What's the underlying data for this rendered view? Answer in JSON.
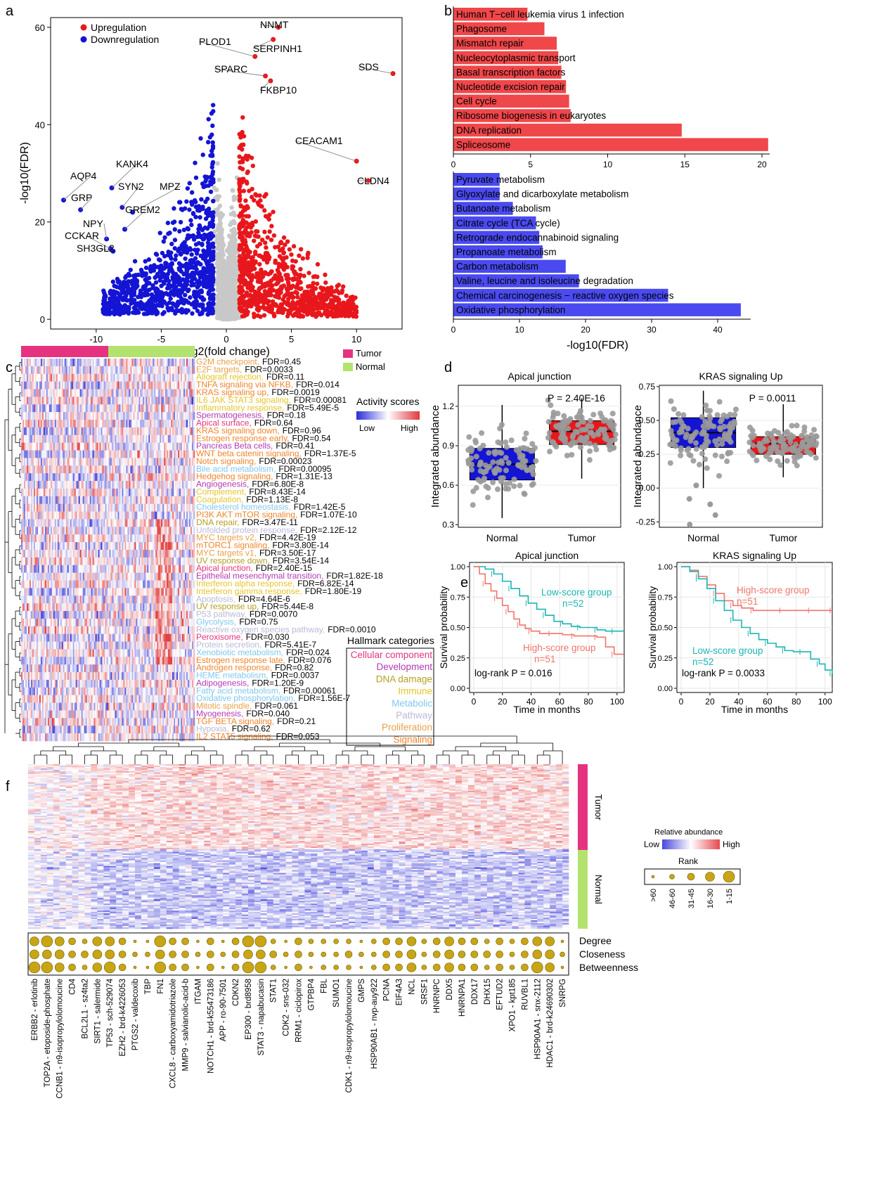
{
  "panel_letters": [
    "a",
    "b",
    "c",
    "d",
    "e",
    "f"
  ],
  "colors": {
    "up": "#e8171c",
    "down": "#1414d4",
    "ns": "#c8c8c8",
    "bar_up": "#f0474a",
    "bar_down": "#4a4af0",
    "tumor": "#e5337f",
    "normal": "#b4e26e",
    "teal": "#1bb5b3",
    "salmon": "#f0756a",
    "gold": "#c8a514"
  },
  "chart_data": [
    {
      "panel": "a",
      "type": "scatter",
      "xlabel": "log2(fold change)",
      "ylabel": "-log10(FDR)",
      "xlim": [
        -13.5,
        13.5
      ],
      "ylim": [
        -2,
        62
      ],
      "xticks": [
        -10,
        -5,
        0,
        5,
        10
      ],
      "yticks": [
        0,
        20,
        40,
        60
      ],
      "legend": [
        "Upregulation",
        "Downregulation"
      ],
      "labels": [
        {
          "gene": "NNMT",
          "x": 4.0,
          "y": 60.0
        },
        {
          "gene": "PLOD1",
          "x": 2.2,
          "y": 54.0
        },
        {
          "gene": "SERPINH1",
          "x": 3.6,
          "y": 57.5
        },
        {
          "gene": "SDS",
          "x": 12.8,
          "y": 50.5
        },
        {
          "gene": "SPARC",
          "x": 3.0,
          "y": 50.0
        },
        {
          "gene": "FKBP10",
          "x": 3.4,
          "y": 49.0
        },
        {
          "gene": "CEACAM1",
          "x": 10.0,
          "y": 32.5
        },
        {
          "gene": "CLDN4",
          "x": 10.9,
          "y": 28.5
        },
        {
          "gene": "AQP4",
          "x": -12.5,
          "y": 24.5
        },
        {
          "gene": "KANK4",
          "x": -8.8,
          "y": 27.0
        },
        {
          "gene": "GRP",
          "x": -11.2,
          "y": 22.5
        },
        {
          "gene": "SYN2",
          "x": -8.0,
          "y": 23.0
        },
        {
          "gene": "MPZ",
          "x": -7.2,
          "y": 22.0
        },
        {
          "gene": "GREM2",
          "x": -7.8,
          "y": 18.5
        },
        {
          "gene": "NPY",
          "x": -9.2,
          "y": 16.5
        },
        {
          "gene": "CCKAR",
          "x": -8.9,
          "y": 14.5
        },
        {
          "gene": "SH3GL2",
          "x": -8.7,
          "y": 14.0
        }
      ]
    },
    {
      "panel": "b",
      "type": "bar",
      "xlabel": "-log10(FDR)",
      "up": {
        "xlim": [
          0,
          20.5
        ],
        "xticks": [
          0,
          5,
          10,
          15,
          20
        ],
        "categories": [
          "Human T−cell leukemia virus 1 infection",
          "Phagosome",
          "Mismatch repair",
          "Nucleocytoplasmic transport",
          "Basal transcription factors",
          "Nucleotide excision repair",
          "Cell cycle",
          "Ribosome biogenesis in eukaryotes",
          "DNA replication",
          "Spliceosome"
        ],
        "values": [
          4.8,
          5.9,
          6.7,
          6.8,
          7.0,
          7.3,
          7.5,
          7.6,
          14.8,
          20.4
        ]
      },
      "down": {
        "xlim": [
          0,
          45
        ],
        "xticks": [
          0,
          10,
          20,
          30,
          40
        ],
        "categories": [
          "Pyruvate metabolism",
          "Glyoxylate and dicarboxylate metabolism",
          "Butanoate metabolism",
          "Citrate cycle (TCA cycle)",
          "Retrograde endocannabinoid signaling",
          "Propanoate metabolism",
          "Carbon metabolism",
          "Valine, leucine and isoleucine degradation",
          "Chemical carcinogenesis − reactive oxygen species",
          "Oxidative phosphorylation"
        ],
        "values": [
          7.0,
          7.0,
          9.0,
          12.5,
          13.0,
          13.5,
          17.0,
          19.0,
          32.5,
          43.5
        ]
      }
    },
    {
      "panel": "c",
      "type": "heatmap",
      "legend_groups": [
        "Tumor",
        "Normal"
      ],
      "scale_title": "Activity scores",
      "scale_low": "Low",
      "scale_high": "High",
      "category_title": "Hallmark categories",
      "categories": [
        {
          "name": "Cellular component",
          "color": "#e5337f"
        },
        {
          "name": "Development",
          "color": "#b33ab3"
        },
        {
          "name": "DNA damage",
          "color": "#b5a020"
        },
        {
          "name": "Immune",
          "color": "#e6c428"
        },
        {
          "name": "Metabolic",
          "color": "#7fc8ef"
        },
        {
          "name": "Pathway",
          "color": "#b9b9d9"
        },
        {
          "name": "Proliferation",
          "color": "#e9a049"
        },
        {
          "name": "Signaling",
          "color": "#f0842a"
        }
      ],
      "rows": [
        {
          "name": "G2M checkpoint,",
          "fdr": "FDR=0.45",
          "cat": 6
        },
        {
          "name": "E2F targets,",
          "fdr": "FDR=0.0033",
          "cat": 6
        },
        {
          "name": "Allograft rejection,",
          "fdr": "FDR=0.11",
          "cat": 3
        },
        {
          "name": "TNFA signaling via NFKB,",
          "fdr": "FDR=0.014",
          "cat": 7
        },
        {
          "name": "KRAS signaling up,",
          "fdr": "FDR=0.0019",
          "cat": 7
        },
        {
          "name": "IL6 JAK STAT3 signaling,",
          "fdr": "FDR=0.00081",
          "cat": 3
        },
        {
          "name": "Inflammatory response,",
          "fdr": "FDR=5.49E-5",
          "cat": 3
        },
        {
          "name": "Spermatogenesis,",
          "fdr": "FDR=0.18",
          "cat": 1
        },
        {
          "name": "Apical surface,",
          "fdr": "FDR=0.64",
          "cat": 0
        },
        {
          "name": "KRAS signaling down,",
          "fdr": "FDR=0.96",
          "cat": 7
        },
        {
          "name": "Estrogen response  early,",
          "fdr": "FDR=0.54",
          "cat": 7
        },
        {
          "name": "Pancreas Beta cells,",
          "fdr": "FDR=0.41",
          "cat": 1
        },
        {
          "name": "WNT beta catenin signaling,",
          "fdr": "FDR=1.37E-5",
          "cat": 7
        },
        {
          "name": "Notch signaling,",
          "fdr": "FDR=0.00023",
          "cat": 7
        },
        {
          "name": "Bile acid metabolism,",
          "fdr": "FDR=0.00095",
          "cat": 4
        },
        {
          "name": "Hedgehog signaling,",
          "fdr": "FDR=1.31E-13",
          "cat": 7
        },
        {
          "name": "Angiogenesis,",
          "fdr": "FDR=6.80E-8",
          "cat": 1
        },
        {
          "name": "Complement,",
          "fdr": "FDR=8.43E-14",
          "cat": 3
        },
        {
          "name": "Coagulation,",
          "fdr": "FDR=1.13E-8",
          "cat": 3
        },
        {
          "name": "Cholesterol homeostasis,",
          "fdr": "FDR=1.42E-5",
          "cat": 4
        },
        {
          "name": "PI3K AKT mTOR signaling,",
          "fdr": "FDR=1.07E-10",
          "cat": 7
        },
        {
          "name": "DNA repair,",
          "fdr": "FDR=3.47E-11",
          "cat": 2
        },
        {
          "name": "Unfolded protein response,",
          "fdr": "FDR=2.12E-12",
          "cat": 5
        },
        {
          "name": "MYC targets v2,",
          "fdr": "FDR=4.42E-19",
          "cat": 6
        },
        {
          "name": "mTORC1 signaling,",
          "fdr": "FDR=3.80E-14",
          "cat": 7
        },
        {
          "name": "MYC targets v1,",
          "fdr": "FDR=3.50E-17",
          "cat": 6
        },
        {
          "name": "UV response down,",
          "fdr": "FDR=3.54E-14",
          "cat": 2
        },
        {
          "name": "Apical junction,",
          "fdr": "FDR=2.40E-15",
          "cat": 0
        },
        {
          "name": "Epithelial mesenchymal transition,",
          "fdr": "FDR=1.82E-18",
          "cat": 1
        },
        {
          "name": "Interferon alpha response,",
          "fdr": "FDR=6.82E-14",
          "cat": 3
        },
        {
          "name": "Interferon gamma response,",
          "fdr": "FDR=1.80E-19",
          "cat": 3
        },
        {
          "name": "Apoptosis,",
          "fdr": "FDR=4.64E-6",
          "cat": 5
        },
        {
          "name": "UV response up,",
          "fdr": "FDR=5.44E-8",
          "cat": 2
        },
        {
          "name": "P53 pathway,",
          "fdr": "FDR=0.0070",
          "cat": 5
        },
        {
          "name": "Glycolysis,",
          "fdr": "FDR=0.75",
          "cat": 4
        },
        {
          "name": "Reactive oxygen species pathway,",
          "fdr": "FDR=0.0010",
          "cat": 5
        },
        {
          "name": "Peroxisome,",
          "fdr": "FDR=0.030",
          "cat": 0
        },
        {
          "name": "Protein secretion,",
          "fdr": "FDR=5.41E-7",
          "cat": 5
        },
        {
          "name": "Xenobiotic metabolism,",
          "fdr": "FDR=0.024",
          "cat": 4
        },
        {
          "name": "Estrogen response late,",
          "fdr": "FDR=0.076",
          "cat": 7
        },
        {
          "name": "Androgen response,",
          "fdr": "FDR=0.82",
          "cat": 7
        },
        {
          "name": "HEME metabolism,",
          "fdr": "FDR=0.0037",
          "cat": 4
        },
        {
          "name": "Adipogenesis,",
          "fdr": "FDR=1.20E-9",
          "cat": 1
        },
        {
          "name": "Fatty acid metabolism,",
          "fdr": "FDR=0.00061",
          "cat": 4
        },
        {
          "name": "Oxidative phosphorylation,",
          "fdr": "FDR=1.56E-7",
          "cat": 4
        },
        {
          "name": "Mitotic spindle,",
          "fdr": "FDR=0.061",
          "cat": 6
        },
        {
          "name": "Myogenesis,",
          "fdr": "FDR=0.040",
          "cat": 1
        },
        {
          "name": "TGF BETA signaling,",
          "fdr": "FDR=0.21",
          "cat": 7
        },
        {
          "name": "Hypoxia,",
          "fdr": "FDR=0.62",
          "cat": 5
        },
        {
          "name": "IL2 STAT5 signaling,",
          "fdr": "FDR=0.053",
          "cat": 7
        }
      ]
    },
    {
      "panel": "d",
      "type": "box",
      "ylabel": "Integrated abundance",
      "groups": [
        "Normal",
        "Tumor"
      ],
      "plots": [
        {
          "title": "Apical junction",
          "pvalue": "P = 2.40E-16",
          "ylim": [
            0.28,
            1.36
          ],
          "yticks": [
            0.3,
            0.6,
            0.9,
            1.2
          ],
          "ytick_labels": [
            "0.3",
            "0.6",
            "0.9",
            "1.2"
          ],
          "normal": {
            "q1": 0.64,
            "median": 0.76,
            "q3": 0.88,
            "lo": 0.35,
            "hi": 1.21
          },
          "tumor": {
            "q1": 0.91,
            "median": 1.01,
            "q3": 1.09,
            "lo": 0.65,
            "hi": 1.26
          }
        },
        {
          "title": "KRAS signaling Up",
          "pvalue": "P = 0.0011",
          "ylim": [
            -0.29,
            0.76
          ],
          "yticks": [
            -0.25,
            0,
            0.25,
            0.5,
            0.75
          ],
          "ytick_labels": [
            "-0.25",
            "0.00",
            "0.25",
            "0.50",
            "0.75"
          ],
          "normal": {
            "q1": 0.3,
            "median": 0.41,
            "q3": 0.52,
            "lo": 0.0,
            "hi": 0.72
          },
          "tumor": {
            "q1": 0.25,
            "median": 0.33,
            "q3": 0.38,
            "lo": 0.08,
            "hi": 0.62
          }
        }
      ]
    },
    {
      "panel": "e",
      "type": "line",
      "xlabel": "Time in months",
      "ylabel": "Survival probability",
      "xlim": [
        0,
        105
      ],
      "ylim": [
        0,
        1
      ],
      "xticks": [
        0,
        20,
        40,
        60,
        80,
        100
      ],
      "yticks": [
        0,
        0.25,
        0.5,
        0.75,
        1
      ],
      "ytick_labels": [
        "0.00",
        "0.25",
        "0.50",
        "0.75",
        "1.00"
      ],
      "plots": [
        {
          "title": "Apical junction",
          "logrank": "log-rank P = 0.016",
          "series": [
            {
              "name": "Low-score group",
              "n": "n=52",
              "color": "teal",
              "x": [
                0,
                8,
                14,
                20,
                26,
                32,
                38,
                44,
                50,
                56,
                62,
                68,
                74,
                80,
                86,
                92,
                98,
                105
              ],
              "y": [
                1,
                0.98,
                0.94,
                0.88,
                0.82,
                0.76,
                0.7,
                0.65,
                0.6,
                0.55,
                0.53,
                0.51,
                0.5,
                0.5,
                0.48,
                0.47,
                0.47,
                0.47
              ]
            },
            {
              "name": "High-score group",
              "n": "n=51",
              "color": "salmon",
              "x": [
                0,
                4,
                8,
                12,
                16,
                20,
                24,
                28,
                32,
                36,
                40,
                46,
                54,
                62,
                70,
                78,
                86,
                92,
                98,
                105
              ],
              "y": [
                1,
                0.94,
                0.86,
                0.8,
                0.74,
                0.68,
                0.63,
                0.57,
                0.52,
                0.49,
                0.47,
                0.45,
                0.45,
                0.44,
                0.43,
                0.43,
                0.42,
                0.34,
                0.28,
                0.28
              ]
            }
          ]
        },
        {
          "title": "KRAS signaling Up",
          "logrank": "log-rank P = 0.0033",
          "series": [
            {
              "name": "High-score group",
              "n": "n=51",
              "color": "salmon",
              "x": [
                0,
                6,
                12,
                18,
                24,
                30,
                36,
                42,
                50,
                60,
                70,
                80,
                90,
                100,
                105
              ],
              "y": [
                1,
                0.97,
                0.92,
                0.85,
                0.78,
                0.72,
                0.68,
                0.66,
                0.64,
                0.64,
                0.64,
                0.64,
                0.64,
                0.64,
                0.64
              ]
            },
            {
              "name": "Low-score group",
              "n": "n=52",
              "color": "teal",
              "x": [
                0,
                6,
                12,
                18,
                24,
                30,
                36,
                42,
                48,
                54,
                60,
                66,
                72,
                78,
                84,
                90,
                96,
                100,
                105
              ],
              "y": [
                1,
                0.96,
                0.9,
                0.82,
                0.72,
                0.64,
                0.56,
                0.5,
                0.45,
                0.4,
                0.37,
                0.34,
                0.31,
                0.3,
                0.3,
                0.24,
                0.2,
                0.15,
                0.12
              ]
            }
          ]
        }
      ]
    },
    {
      "panel": "f",
      "type": "heatmap",
      "groups": [
        "Tumor",
        "Normal"
      ],
      "scale_title": "Relative abundance",
      "scale_low": "Low",
      "scale_high": "High",
      "rank_title": "Rank",
      "rank_labels": [
        ">60",
        "46-60",
        "31-45",
        "16-30",
        "1-15"
      ],
      "metrics": [
        "Degree",
        "Closeness",
        "Betweenness"
      ],
      "columns": [
        "ERBB2 - erlotinib",
        "TOP2A - etoposide-phosphate",
        "CCNB1 - n9-isopropylolomoucine",
        "CD4",
        "BCL2L1 - sz4ta2",
        "SIRT1 - salermide",
        "TP53 - sch-529074",
        "EZH2 - brd-k4226053",
        "PTGS2 - valdecoxib",
        "TBP",
        "FN1",
        "CXCL8 - carboxyamidotriazole",
        "MMP9 - salvianolic-acid-b",
        "ITGAM",
        "NOTCH1 - brd-k55473186",
        "APP - ro-90-7501",
        "CDKN2",
        "EP300 - brd8958",
        "STAT3 - napabucasin",
        "STAT1",
        "CDK2 - sns-032",
        "RRM1 - ciclopirox",
        "GTPBP4",
        "FBL",
        "SUMO1",
        "CDK1 - n9-isopropylolomoucine",
        "GMPS",
        "HSP90AB1 - nvp-auy922",
        "PCNA",
        "EIF4A3",
        "NCL",
        "SRSF1",
        "HNRNPC",
        "DDX5",
        "HNRNPA1",
        "DDX17",
        "DHX15",
        "EFTUD2",
        "XPO1 - kpt185",
        "RUVBL1",
        "HSP90AA1 - snx-2112",
        "HDAC1 - brd-k24690302",
        "SNRPG"
      ],
      "degree": [
        4,
        5,
        4,
        3,
        2,
        4,
        4,
        3,
        1,
        1,
        5,
        3,
        3,
        1,
        3,
        1,
        3,
        5,
        5,
        2,
        1,
        3,
        2,
        2,
        2,
        2,
        1,
        2,
        3,
        3,
        4,
        2,
        3,
        4,
        3,
        3,
        2,
        3,
        2,
        3,
        4,
        4,
        1
      ],
      "closeness": [
        4,
        4,
        4,
        3,
        3,
        4,
        4,
        3,
        2,
        2,
        4,
        3,
        3,
        2,
        3,
        2,
        3,
        4,
        4,
        3,
        2,
        3,
        2,
        2,
        2,
        3,
        2,
        2,
        3,
        3,
        4,
        2,
        3,
        4,
        3,
        3,
        3,
        3,
        2,
        3,
        4,
        4,
        2
      ],
      "betweenness": [
        5,
        5,
        4,
        3,
        2,
        4,
        5,
        3,
        1,
        1,
        5,
        3,
        3,
        1,
        3,
        1,
        3,
        5,
        5,
        2,
        1,
        3,
        1,
        2,
        2,
        2,
        1,
        2,
        3,
        3,
        4,
        2,
        3,
        4,
        3,
        3,
        2,
        3,
        2,
        3,
        5,
        4,
        1
      ]
    }
  ]
}
